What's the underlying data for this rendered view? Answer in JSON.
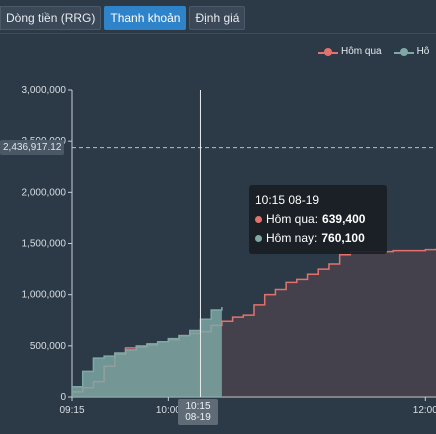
{
  "tabs": [
    {
      "label": "Dòng tiền (RRG)",
      "active": false
    },
    {
      "label": "Thanh khoản",
      "active": true
    },
    {
      "label": "Định giá",
      "active": false
    }
  ],
  "legend": [
    {
      "label": "Hôm qua",
      "color": "#e3726d"
    },
    {
      "label": "Hô",
      "color": "#7fa9a6"
    }
  ],
  "plot_line_label": "2,436,917.12",
  "crosshair_label": [
    "10:15",
    "08-19"
  ],
  "tooltip": {
    "title": "10:15 08-19",
    "rows": [
      {
        "name": "Hôm qua",
        "value": "639,400",
        "color": "#e3726d"
      },
      {
        "name": "Hôm nay",
        "value": "760,100",
        "color": "#7fa9a6"
      }
    ]
  },
  "chart_data": {
    "type": "area",
    "x_axis": {
      "type": "time",
      "range": [
        "09:15",
        "12:05"
      ],
      "ticks": [
        "09:15",
        "10:00",
        "12:00"
      ]
    },
    "y_axis": {
      "range": [
        0,
        3000000
      ],
      "ticks": [
        "0",
        "500,000",
        "1,000,000",
        "1,500,000",
        "2,000,000",
        "2,500,000",
        "3,000,000"
      ]
    },
    "grid": false,
    "legend_position": "top-right",
    "plot_line": {
      "value": 2436917.12,
      "style": "dashed"
    },
    "crosshair_x": "10:15",
    "series": [
      {
        "name": "Hôm qua",
        "color": "#e3726d",
        "x": [
          "09:15",
          "09:20",
          "09:25",
          "09:30",
          "09:35",
          "09:40",
          "09:45",
          "09:50",
          "09:55",
          "10:00",
          "10:05",
          "10:10",
          "10:15",
          "10:20",
          "10:25",
          "10:30",
          "10:35",
          "10:40",
          "10:45",
          "10:50",
          "10:55",
          "11:00",
          "11:05",
          "11:10",
          "11:15",
          "11:20",
          "11:25",
          "11:30",
          "11:35",
          "11:40",
          "11:45",
          "11:50",
          "11:55",
          "12:00",
          "12:05"
        ],
        "values": [
          50000,
          90000,
          150000,
          300000,
          420000,
          480000,
          500000,
          520000,
          540000,
          560000,
          600000,
          620000,
          639400,
          700000,
          740000,
          780000,
          800000,
          900000,
          1000000,
          1050000,
          1120000,
          1150000,
          1200000,
          1250000,
          1300000,
          1390000,
          1420000,
          1420000,
          1420000,
          1420000,
          1430000,
          1430000,
          1430000,
          1440000,
          1450000
        ]
      },
      {
        "name": "Hôm nay",
        "color": "#7fa9a6",
        "x": [
          "09:15",
          "09:20",
          "09:25",
          "09:30",
          "09:35",
          "09:40",
          "09:45",
          "09:50",
          "09:55",
          "10:00",
          "10:05",
          "10:10",
          "10:15",
          "10:20",
          "10:25"
        ],
        "values": [
          100000,
          250000,
          380000,
          400000,
          430000,
          460000,
          490000,
          510000,
          540000,
          570000,
          600000,
          650000,
          760100,
          850000,
          880000
        ]
      }
    ]
  }
}
